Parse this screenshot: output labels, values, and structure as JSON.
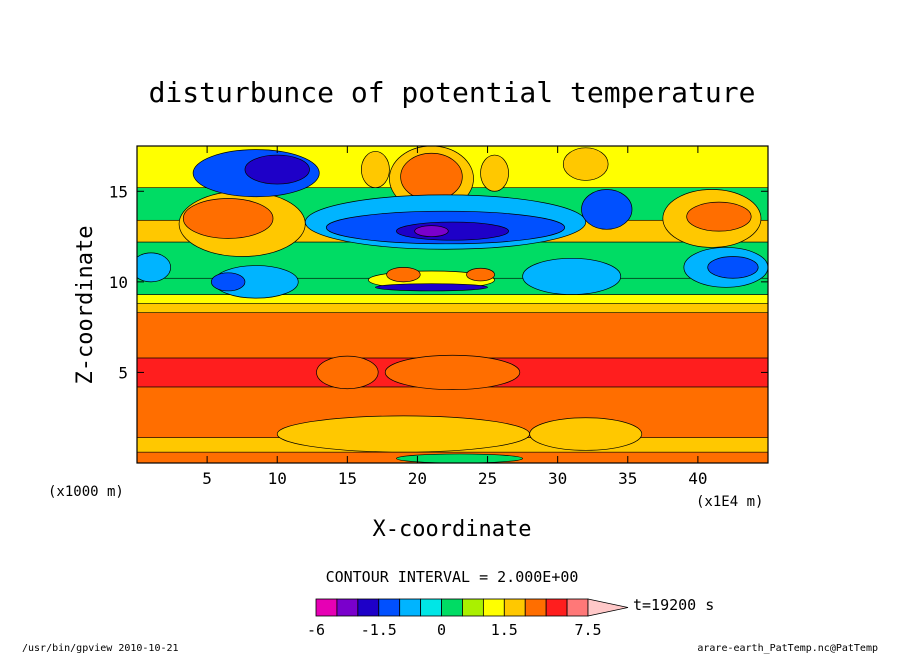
{
  "chart_data": {
    "type": "heatmap",
    "title": "disturbunce of potential temperature",
    "xlabel": "X-coordinate",
    "ylabel": "Z-coordinate",
    "x_unit_left": "(x1000 m)",
    "x_unit_right": "(x1E4 m)",
    "xlim": [
      0,
      45
    ],
    "ylim": [
      0,
      17.5
    ],
    "x_ticks": [
      5,
      10,
      15,
      20,
      25,
      30,
      35,
      40
    ],
    "y_ticks": [
      5,
      10,
      15
    ],
    "contour_interval_text": "CONTOUR INTERVAL = 2.000E+00",
    "time_text": "t=19200 s",
    "colorbar": {
      "levels": [
        -6,
        -4,
        -2,
        -1.5,
        -1,
        -0.5,
        0,
        0.5,
        1,
        1.5,
        2,
        4,
        6,
        7.5
      ],
      "labels": [
        "-6",
        "-1.5",
        "0",
        "1.5",
        "7.5"
      ],
      "label_values": [
        -6,
        -1.5,
        0,
        1.5,
        7.5
      ],
      "colors": [
        "#e600b4",
        "#7a00cc",
        "#1e00c8",
        "#0050ff",
        "#00b4ff",
        "#00e6e6",
        "#00dc64",
        "#aaf000",
        "#ffff00",
        "#ffc800",
        "#ff6e00",
        "#ff1e1e",
        "#ff7878",
        "#ffc8c8"
      ]
    },
    "bands": [
      {
        "z0": 0,
        "z1": 0.6,
        "color": "#ff6e00"
      },
      {
        "z0": 0.6,
        "z1": 1.4,
        "color": "#ffc800"
      },
      {
        "z0": 1.4,
        "z1": 4.2,
        "color": "#ff6e00"
      },
      {
        "z0": 4.2,
        "z1": 5.8,
        "color": "#ff1e1e"
      },
      {
        "z0": 5.8,
        "z1": 8.3,
        "color": "#ff6e00"
      },
      {
        "z0": 8.3,
        "z1": 8.8,
        "color": "#ffc800"
      },
      {
        "z0": 8.8,
        "z1": 9.3,
        "color": "#ffff00"
      },
      {
        "z0": 9.3,
        "z1": 10.2,
        "color": "#00dc64"
      },
      {
        "z0": 10.2,
        "z1": 12.2,
        "color": "#00dc64"
      },
      {
        "z0": 12.2,
        "z1": 13.4,
        "color": "#ffc800"
      },
      {
        "z0": 13.4,
        "z1": 15.2,
        "color": "#00dc64"
      },
      {
        "z0": 15.2,
        "z1": 17.5,
        "color": "#ffff00"
      }
    ],
    "blobs": [
      {
        "x": 7.5,
        "z": 13.2,
        "rx": 4.5,
        "rz": 1.8,
        "color": "#ffc800"
      },
      {
        "x": 6.5,
        "z": 13.5,
        "rx": 3.2,
        "rz": 1.1,
        "color": "#ff6e00"
      },
      {
        "x": 41,
        "z": 13.5,
        "rx": 3.5,
        "rz": 1.6,
        "color": "#ffc800"
      },
      {
        "x": 41.5,
        "z": 13.6,
        "rx": 2.3,
        "rz": 0.8,
        "color": "#ff6e00"
      },
      {
        "x": 21,
        "z": 15.7,
        "rx": 3.0,
        "rz": 1.8,
        "color": "#ffc800"
      },
      {
        "x": 21,
        "z": 15.8,
        "rx": 2.2,
        "rz": 1.3,
        "color": "#ff6e00"
      },
      {
        "x": 17,
        "z": 16.2,
        "rx": 1.0,
        "rz": 1.0,
        "color": "#ffc800"
      },
      {
        "x": 25.5,
        "z": 16.0,
        "rx": 1.0,
        "rz": 1.0,
        "color": "#ffc800"
      },
      {
        "x": 32,
        "z": 16.5,
        "rx": 1.6,
        "rz": 0.9,
        "color": "#ffc800"
      },
      {
        "x": 22,
        "z": 13.3,
        "rx": 10.0,
        "rz": 1.5,
        "color": "#00b4ff"
      },
      {
        "x": 22,
        "z": 13.0,
        "rx": 8.5,
        "rz": 0.9,
        "color": "#0050ff"
      },
      {
        "x": 22.5,
        "z": 12.8,
        "rx": 4.0,
        "rz": 0.5,
        "color": "#1e00c8"
      },
      {
        "x": 21,
        "z": 12.8,
        "rx": 1.2,
        "rz": 0.3,
        "color": "#7a00cc"
      },
      {
        "x": 8.5,
        "z": 16.0,
        "rx": 4.5,
        "rz": 1.3,
        "color": "#0050ff"
      },
      {
        "x": 10.0,
        "z": 16.2,
        "rx": 2.3,
        "rz": 0.8,
        "color": "#1e00c8"
      },
      {
        "x": 33.5,
        "z": 14.0,
        "rx": 1.8,
        "rz": 1.1,
        "color": "#0050ff"
      },
      {
        "x": 42,
        "z": 10.8,
        "rx": 3.0,
        "rz": 1.1,
        "color": "#00b4ff"
      },
      {
        "x": 42.5,
        "z": 10.8,
        "rx": 1.8,
        "rz": 0.6,
        "color": "#0050ff"
      },
      {
        "x": 1.0,
        "z": 10.8,
        "rx": 1.4,
        "rz": 0.8,
        "color": "#00b4ff"
      },
      {
        "x": 8.5,
        "z": 10.0,
        "rx": 3.0,
        "rz": 0.9,
        "color": "#00b4ff"
      },
      {
        "x": 6.5,
        "z": 10.0,
        "rx": 1.2,
        "rz": 0.5,
        "color": "#0050ff"
      },
      {
        "x": 31,
        "z": 10.3,
        "rx": 3.5,
        "rz": 1.0,
        "color": "#00b4ff"
      },
      {
        "x": 21,
        "z": 10.1,
        "rx": 4.5,
        "rz": 0.5,
        "color": "#ffff00"
      },
      {
        "x": 19,
        "z": 10.4,
        "rx": 1.2,
        "rz": 0.4,
        "color": "#ff6e00"
      },
      {
        "x": 24.5,
        "z": 10.4,
        "rx": 1.0,
        "rz": 0.35,
        "color": "#ff6e00"
      },
      {
        "x": 21,
        "z": 9.7,
        "rx": 4.0,
        "rz": 0.2,
        "color": "#1e00c8"
      },
      {
        "x": 15.0,
        "z": 5.0,
        "rx": 2.2,
        "rz": 0.9,
        "color": "#ff6e00"
      },
      {
        "x": 22.5,
        "z": 5.0,
        "rx": 4.8,
        "rz": 0.95,
        "color": "#ff6e00"
      },
      {
        "x": 19,
        "z": 1.6,
        "rx": 9.0,
        "rz": 1.0,
        "color": "#ffc800"
      },
      {
        "x": 32,
        "z": 1.6,
        "rx": 4.0,
        "rz": 0.9,
        "color": "#ffc800"
      },
      {
        "x": 23,
        "z": 0.25,
        "rx": 4.5,
        "rz": 0.25,
        "color": "#00dc64"
      }
    ]
  },
  "footer": {
    "left": "/usr/bin/gpview  2010-10-21",
    "right": "arare-earth_PatTemp.nc@PatTemp"
  }
}
